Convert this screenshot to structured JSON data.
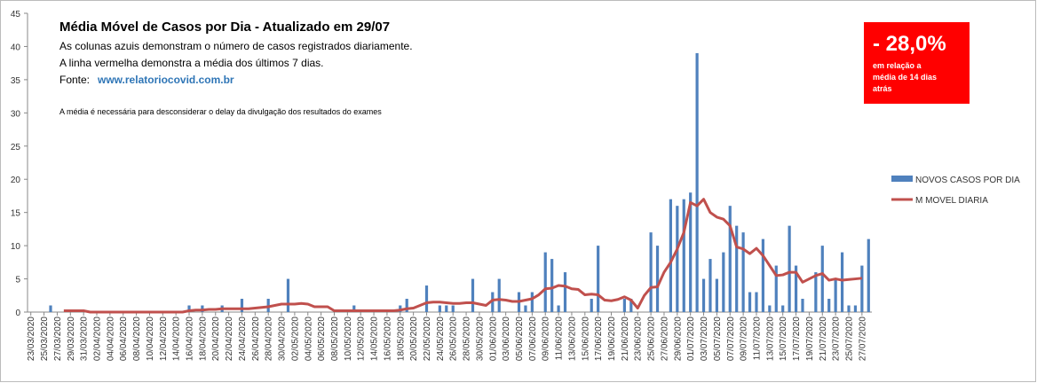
{
  "chart_data": {
    "type": "bar_line",
    "title": "Média Móvel de Casos por Dia - Atualizado em 29/07",
    "subtitle_lines": [
      "As colunas azuis demonstram  o número  de casos registrados diariamente.",
      "A linha vermelha  demonstra  a média dos últimos 7 dias."
    ],
    "source_label": "Fonte:",
    "source_url": "www.relatoriocovid.com.br",
    "note": "A média é necessária para desconsiderar o delay da divulgação dos resultados do exames",
    "callout": {
      "value": "- 28,0%",
      "lines": [
        "em relação a",
        "média de 14 dias",
        "atrás"
      ],
      "color": "#ff0000"
    },
    "categories": [
      "23/03/2020",
      null,
      "25/03/2020",
      null,
      "27/03/2020",
      null,
      "29/03/2020",
      null,
      "31/03/2020",
      null,
      "02/04/2020",
      null,
      "04/04/2020",
      null,
      "06/04/2020",
      null,
      "08/04/2020",
      null,
      "10/04/2020",
      null,
      "12/04/2020",
      null,
      "14/04/2020",
      null,
      "16/04/2020",
      null,
      "18/04/2020",
      null,
      "20/04/2020",
      null,
      "22/04/2020",
      null,
      "24/04/2020",
      null,
      "26/04/2020",
      null,
      "28/04/2020",
      null,
      "30/04/2020",
      null,
      "02/05/2020",
      null,
      "04/05/2020",
      null,
      "06/05/2020",
      null,
      "08/05/2020",
      null,
      "10/05/2020",
      null,
      "12/05/2020",
      null,
      "14/05/2020",
      null,
      "16/05/2020",
      null,
      "18/05/2020",
      null,
      "20/05/2020",
      null,
      "22/05/2020",
      null,
      "24/05/2020",
      null,
      "26/05/2020",
      null,
      "28/05/2020",
      null,
      "30/05/2020",
      null,
      "01/06/2020",
      null,
      "03/06/2020",
      null,
      "05/06/2020",
      null,
      "07/06/2020",
      null,
      "09/06/2020",
      null,
      "11/06/2020",
      null,
      "13/06/2020",
      null,
      "15/06/2020",
      null,
      "17/06/2020",
      null,
      "19/06/2020",
      null,
      "21/06/2020",
      null,
      "23/06/2020",
      null,
      "25/06/2020",
      null,
      "27/06/2020",
      null,
      "29/06/2020",
      null,
      "01/07/2020",
      null,
      "03/07/2020",
      null,
      "05/07/2020",
      null,
      "07/07/2020",
      null,
      "09/07/2020",
      null,
      "11/07/2020",
      null,
      "13/07/2020",
      null,
      "15/07/2020",
      null,
      "17/07/2020",
      null,
      "19/07/2020",
      null,
      "21/07/2020",
      null,
      "23/07/2020",
      null,
      "25/07/2020",
      null,
      "27/07/2020",
      null
    ],
    "series": [
      {
        "name": "NOVOS CASOS POR DIA",
        "color": "#4f81bd",
        "kind": "bar",
        "values": [
          0,
          0,
          0,
          1,
          0,
          0,
          0,
          0,
          0,
          0,
          0,
          0,
          0,
          0,
          0,
          0,
          0,
          0,
          0,
          0,
          0,
          0,
          0,
          0,
          1,
          0,
          1,
          0,
          0,
          1,
          0,
          0,
          2,
          0,
          0,
          0,
          2,
          0,
          0,
          5,
          0,
          0,
          0,
          0,
          0,
          0,
          0,
          0,
          0,
          1,
          0,
          0,
          0,
          0,
          0,
          0,
          1,
          2,
          0,
          0,
          4,
          0,
          1,
          1,
          1,
          0,
          0,
          5,
          0,
          0,
          3,
          5,
          0,
          0,
          3,
          1,
          3,
          0,
          9,
          8,
          1,
          6,
          0,
          0,
          0,
          2,
          10,
          0,
          0,
          0,
          2,
          2,
          0,
          0,
          12,
          10,
          0,
          17,
          16,
          17,
          18,
          39,
          5,
          8,
          5,
          9,
          16,
          13,
          12,
          3,
          3,
          11,
          1,
          7,
          1,
          13,
          7,
          2,
          0,
          6,
          10,
          2,
          5,
          9,
          1,
          1,
          7,
          11
        ]
      },
      {
        "name": "M MOVEL DIARIA",
        "color": "#c0504d",
        "kind": "line",
        "values": [
          null,
          null,
          null,
          null,
          null,
          0.2,
          0.2,
          0.2,
          0.2,
          0,
          0,
          0,
          0,
          0,
          0,
          0,
          0,
          0,
          0,
          0,
          0,
          0,
          0,
          0,
          0.2,
          0.3,
          0.3,
          0.4,
          0.4,
          0.5,
          0.5,
          0.5,
          0.5,
          0.5,
          0.6,
          0.7,
          0.8,
          1,
          1.2,
          1.2,
          1.2,
          1.3,
          1.2,
          0.8,
          0.8,
          0.8,
          0.2,
          0.2,
          0.2,
          0.2,
          0.2,
          0.2,
          0.2,
          0.2,
          0.2,
          0.2,
          0.3,
          0.5,
          0.6,
          1,
          1.4,
          1.5,
          1.5,
          1.4,
          1.3,
          1.3,
          1.4,
          1.4,
          1.2,
          1,
          1.8,
          1.9,
          1.8,
          1.6,
          1.6,
          1.8,
          2,
          2.6,
          3.5,
          3.6,
          4,
          3.9,
          3.5,
          3.4,
          2.6,
          2.7,
          2.6,
          1.8,
          1.7,
          1.9,
          2.3,
          1.8,
          0.6,
          2.5,
          3.7,
          3.8,
          6,
          7.5,
          9.5,
          12,
          16.5,
          16,
          17,
          15,
          14.3,
          14,
          13,
          9.8,
          9.5,
          8.8,
          9.6,
          8.5,
          7,
          5.5,
          5.6,
          6,
          6,
          4.5,
          5,
          5.5,
          5.8,
          4.8,
          5,
          4.8,
          4.9,
          5,
          5.1,
          null
        ]
      }
    ],
    "ylim": [
      0,
      45
    ],
    "yticks": [
      0,
      5,
      10,
      15,
      20,
      25,
      30,
      35,
      40,
      45
    ],
    "grid": false,
    "legend": "right"
  }
}
